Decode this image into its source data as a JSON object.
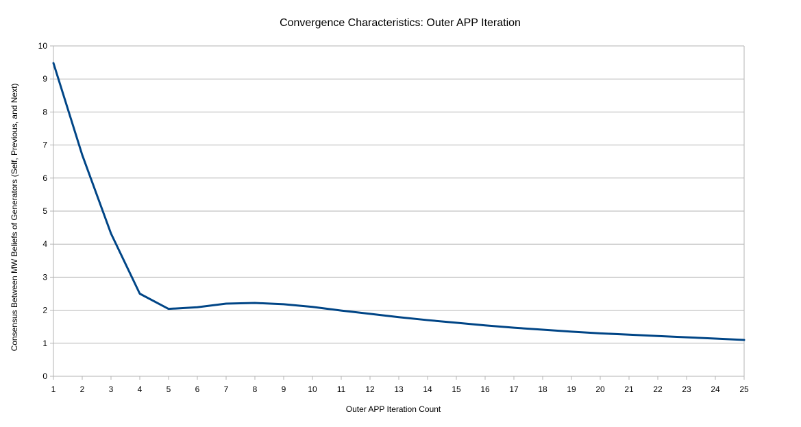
{
  "chart_data": {
    "type": "line",
    "title": "Convergence Characteristics: Outer APP Iteration",
    "xlabel": "Outer APP Iteration Count",
    "ylabel": "Consensus Between MW Beliefs of Generators (Self, Previous, and Next)",
    "x": [
      1,
      2,
      3,
      4,
      5,
      6,
      7,
      8,
      9,
      10,
      11,
      12,
      13,
      14,
      15,
      16,
      17,
      18,
      19,
      20,
      21,
      22,
      23,
      24,
      25
    ],
    "series": [
      {
        "values": [
          9.48,
          6.7,
          4.32,
          2.5,
          2.04,
          2.09,
          2.2,
          2.22,
          2.18,
          2.1,
          1.99,
          1.89,
          1.79,
          1.7,
          1.62,
          1.54,
          1.47,
          1.41,
          1.35,
          1.3,
          1.26,
          1.22,
          1.18,
          1.14,
          1.1
        ],
        "color": "#004586"
      }
    ],
    "xlim": [
      1,
      25
    ],
    "ylim": [
      0,
      10
    ],
    "y_ticks": [
      0,
      1,
      2,
      3,
      4,
      5,
      6,
      7,
      8,
      9,
      10
    ],
    "grid": true,
    "legend": "none"
  }
}
